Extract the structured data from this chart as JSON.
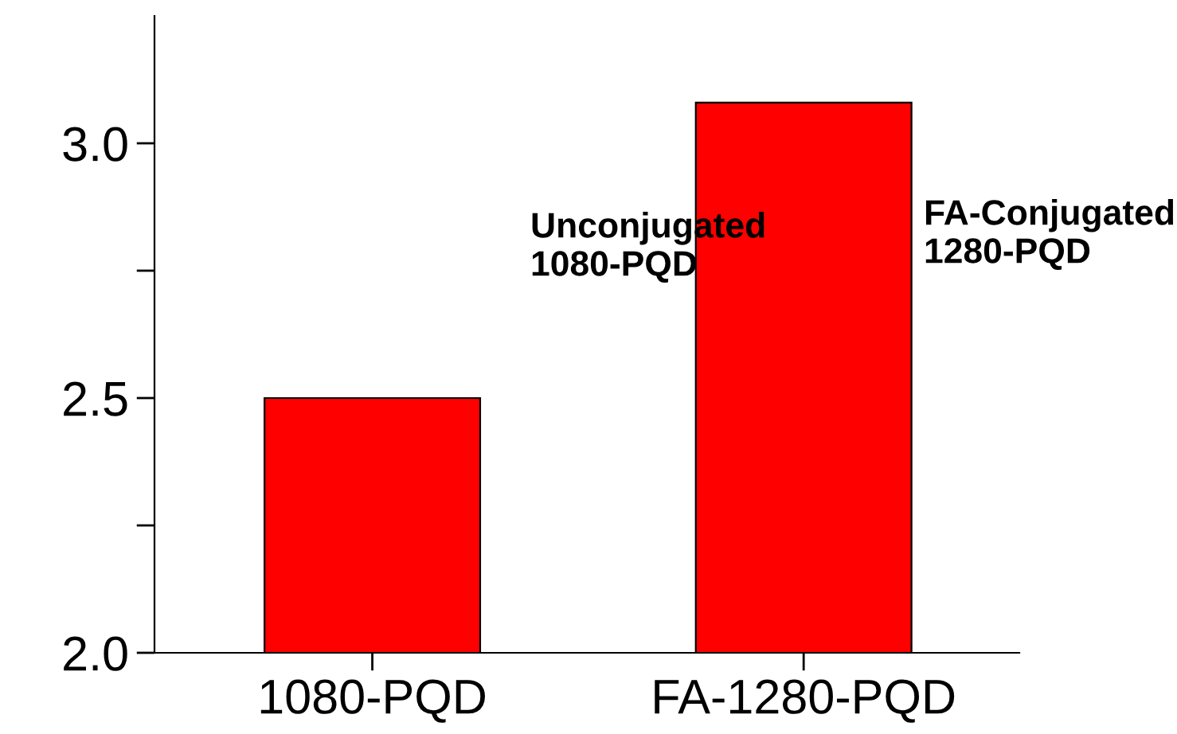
{
  "chart_data": {
    "type": "bar",
    "categories": [
      "1080-PQD",
      "FA-1280-PQD"
    ],
    "values": [
      2.5,
      3.08
    ],
    "color": "#ff0000",
    "ylim": [
      2.0,
      3.25
    ],
    "yticks": [
      {
        "value": 2.0,
        "label": "2.0"
      },
      {
        "value": 2.25,
        "label": null
      },
      {
        "value": 2.5,
        "label": "2.5"
      },
      {
        "value": 2.75,
        "label": null
      },
      {
        "value": 3.0,
        "label": "3.0"
      }
    ],
    "annotations": [
      "Unconjugated\n1080-PQD",
      "FA-Conjugated\n1280-PQD"
    ],
    "grid": false,
    "legend": false
  }
}
